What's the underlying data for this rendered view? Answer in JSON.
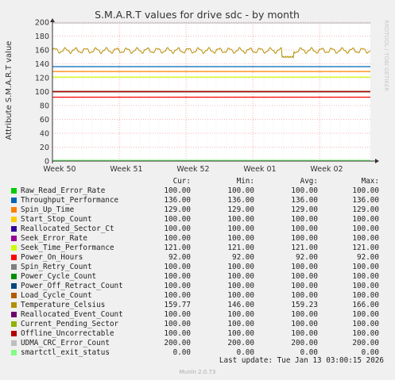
{
  "chart_data": {
    "type": "line",
    "title": "S.M.A.R.T values for drive sdc - by month",
    "ylabel": "Attribute S.M.A.R.T value",
    "ylim": [
      0,
      200
    ],
    "y_ticks": [
      0,
      20,
      40,
      60,
      80,
      100,
      120,
      140,
      160,
      180,
      200
    ],
    "x_ticks": [
      "Week 50",
      "Week 51",
      "Week 52",
      "Week 01",
      "Week 02"
    ],
    "grid": true,
    "legend_position": "bottom",
    "columns": [
      "Cur:",
      "Min:",
      "Avg:",
      "Max:"
    ],
    "series": [
      {
        "name": "Raw_Read_Error_Rate",
        "color": "#00cc00",
        "cur": "100.00",
        "min": "100.00",
        "avg": "100.00",
        "max": "100.00",
        "value": 100
      },
      {
        "name": "Throughput_Performance",
        "color": "#0066b3",
        "cur": "136.00",
        "min": "136.00",
        "avg": "136.00",
        "max": "136.00",
        "value": 136
      },
      {
        "name": "Spin_Up_Time",
        "color": "#ff8000",
        "cur": "129.00",
        "min": "129.00",
        "avg": "129.00",
        "max": "129.00",
        "value": 129
      },
      {
        "name": "Start_Stop_Count",
        "color": "#ffcc00",
        "cur": "100.00",
        "min": "100.00",
        "avg": "100.00",
        "max": "100.00",
        "value": 100
      },
      {
        "name": "Reallocated_Sector_Ct",
        "color": "#330099",
        "cur": "100.00",
        "min": "100.00",
        "avg": "100.00",
        "max": "100.00",
        "value": 100
      },
      {
        "name": "Seek_Error_Rate",
        "color": "#990099",
        "cur": "100.00",
        "min": "100.00",
        "avg": "100.00",
        "max": "100.00",
        "value": 100
      },
      {
        "name": "Seek_Time_Performance",
        "color": "#ccff00",
        "cur": "121.00",
        "min": "121.00",
        "avg": "121.00",
        "max": "121.00",
        "value": 121
      },
      {
        "name": "Power_On_Hours",
        "color": "#ff0000",
        "cur": "92.00",
        "min": "92.00",
        "avg": "92.00",
        "max": "92.00",
        "value": 92
      },
      {
        "name": "Spin_Retry_Count",
        "color": "#808080",
        "cur": "100.00",
        "min": "100.00",
        "avg": "100.00",
        "max": "100.00",
        "value": 100
      },
      {
        "name": "Power_Cycle_Count",
        "color": "#008f00",
        "cur": "100.00",
        "min": "100.00",
        "avg": "100.00",
        "max": "100.00",
        "value": 100
      },
      {
        "name": "Power_Off_Retract_Count",
        "color": "#00487d",
        "cur": "100.00",
        "min": "100.00",
        "avg": "100.00",
        "max": "100.00",
        "value": 100
      },
      {
        "name": "Load_Cycle_Count",
        "color": "#b35a00",
        "cur": "100.00",
        "min": "100.00",
        "avg": "100.00",
        "max": "100.00",
        "value": 100
      },
      {
        "name": "Temperature_Celsius",
        "color": "#b38f00",
        "cur": "159.77",
        "min": "146.00",
        "avg": "159.23",
        "max": "166.00",
        "value": 159.23
      },
      {
        "name": "Reallocated_Event_Count",
        "color": "#6b006b",
        "cur": "100.00",
        "min": "100.00",
        "avg": "100.00",
        "max": "100.00",
        "value": 100
      },
      {
        "name": "Current_Pending_Sector",
        "color": "#8fb300",
        "cur": "100.00",
        "min": "100.00",
        "avg": "100.00",
        "max": "100.00",
        "value": 100
      },
      {
        "name": "Offline_Uncorrectable",
        "color": "#b30000",
        "cur": "100.00",
        "min": "100.00",
        "avg": "100.00",
        "max": "100.00",
        "value": 100
      },
      {
        "name": "UDMA_CRC_Error_Count",
        "color": "#bebebe",
        "cur": "200.00",
        "min": "200.00",
        "avg": "200.00",
        "max": "200.00",
        "value": 200
      },
      {
        "name": "smartctl_exit_status",
        "color": "#80ff80",
        "cur": "0.00",
        "min": "0.00",
        "avg": "0.00",
        "max": "0.00",
        "value": 0
      }
    ]
  },
  "watermark": "RRDTOOL / TOBI OETIKER",
  "last_update": "Last update: Tue Jan 13 03:00:15 2026",
  "footer": "Munin 2.0.73"
}
